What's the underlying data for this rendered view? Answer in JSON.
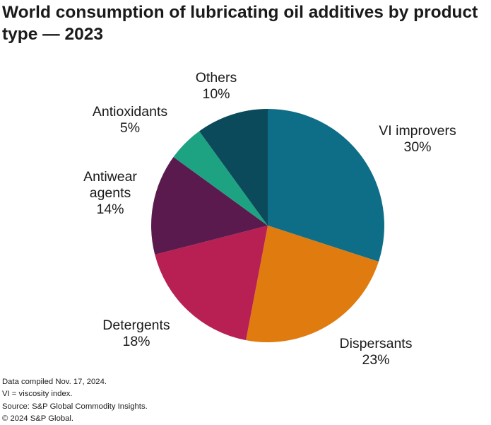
{
  "chart_data": {
    "type": "pie",
    "title": "World consumption of lubricating oil additives by product type — 2023",
    "slices": [
      {
        "label": "VI improvers",
        "value": 30,
        "value_label": "30%",
        "color": "#0f6e87"
      },
      {
        "label": "Dispersants",
        "value": 23,
        "value_label": "23%",
        "color": "#e07b10"
      },
      {
        "label": "Detergents",
        "value": 18,
        "value_label": "18%",
        "color": "#b81f52"
      },
      {
        "label": "Antiwear agents",
        "value": 14,
        "value_label": "14%",
        "color": "#5b1a4e"
      },
      {
        "label": "Antioxidants",
        "value": 5,
        "value_label": "5%",
        "color": "#1da382"
      },
      {
        "label": "Others",
        "value": 10,
        "value_label": "10%",
        "color": "#0a4a5a"
      }
    ]
  },
  "footnotes": [
    "Data compiled Nov. 17, 2024.",
    "VI = viscosity index.",
    "Source: S&P Global Commodity Insights.",
    "© 2024 S&P Global."
  ]
}
